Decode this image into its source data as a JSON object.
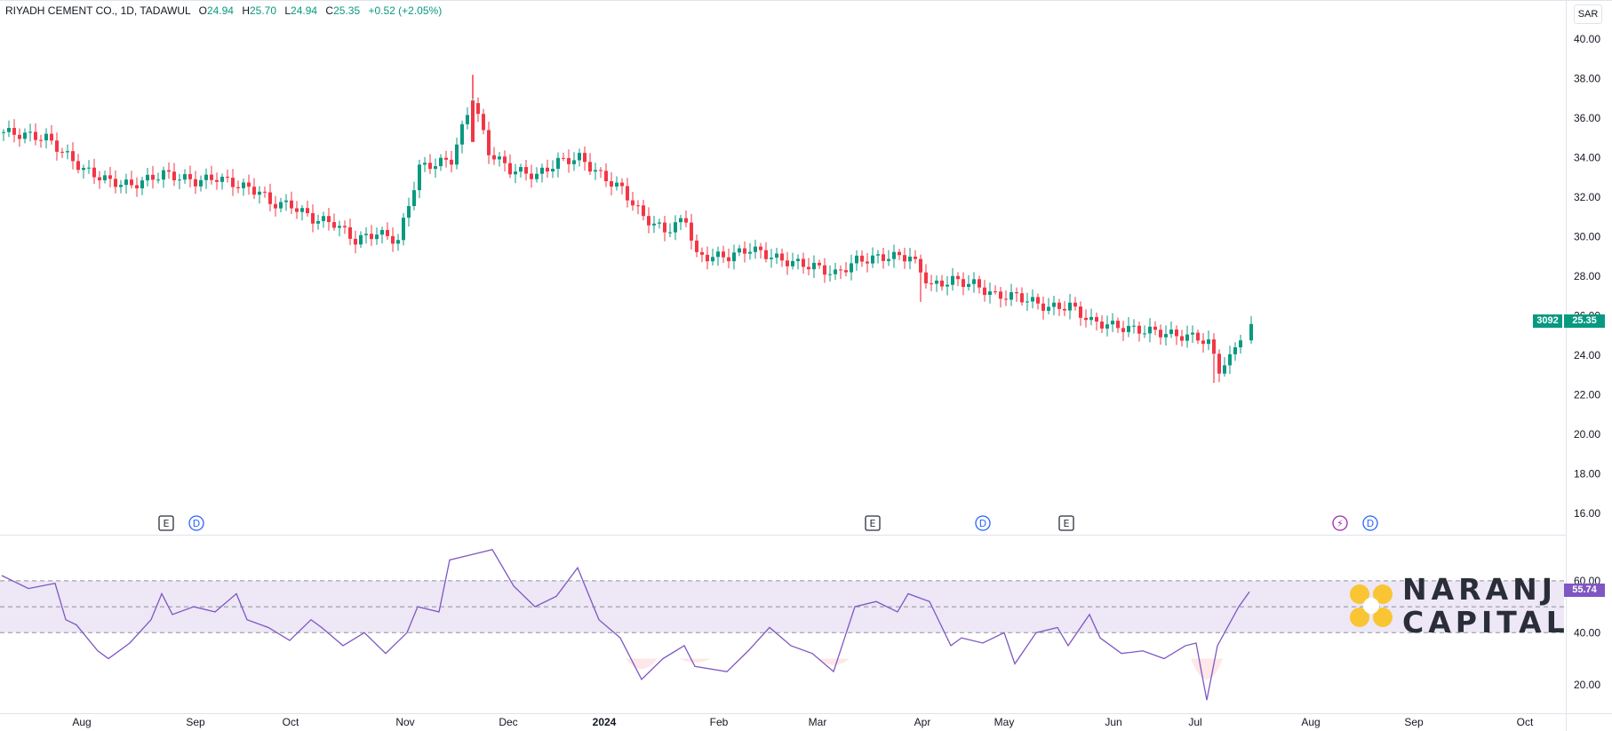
{
  "legend": {
    "symbol": "RIYADH CEMENT CO., 1D, TADAWUL",
    "open_label": "O",
    "open": "24.94",
    "high_label": "H",
    "high": "25.70",
    "low_label": "L",
    "low": "24.94",
    "close_label": "C",
    "close": "25.35",
    "change": "+0.52 (+2.05%)"
  },
  "currency": "SAR",
  "price_tags": {
    "volume": "3092",
    "last_price": "25.35",
    "rsi_value": "55.74"
  },
  "colors": {
    "up": "#089981",
    "down": "#f23645",
    "rsi": "#7e57c2",
    "rsi_band": "#ede7f6",
    "tag_green": "#089981",
    "tag_purple": "#7e57c2",
    "logo_yellow": "#f9c533"
  },
  "logo": {
    "line1": "NARANJ",
    "line2": "CAPITAL"
  },
  "chart_data": [
    {
      "type": "candlestick",
      "title": "RIYADH CEMENT CO., 1D, TADAWUL",
      "ylim": [
        15,
        41
      ],
      "y_ticks": [
        "16.00",
        "18.00",
        "20.00",
        "22.00",
        "24.00",
        "26.00",
        "28.00",
        "30.00",
        "32.00",
        "34.00",
        "36.00",
        "38.00",
        "40.00"
      ],
      "x_ticks": [
        "Aug",
        "Sep",
        "Oct",
        "Nov",
        "Dec",
        "2024",
        "Feb",
        "Mar",
        "Apr",
        "May",
        "Jun",
        "Jul",
        "Aug",
        "Sep",
        "Oct"
      ],
      "close_path": [
        [
          0,
          35.3
        ],
        [
          8,
          35.0
        ],
        [
          15,
          33.4
        ],
        [
          20,
          32.8
        ],
        [
          24,
          32.6
        ],
        [
          30,
          33.2
        ],
        [
          36,
          32.8
        ],
        [
          40,
          33.0
        ],
        [
          44,
          32.6
        ],
        [
          48,
          32.3
        ],
        [
          50,
          31.7
        ],
        [
          54,
          31.6
        ],
        [
          58,
          30.9
        ],
        [
          62,
          30.7
        ],
        [
          66,
          29.8
        ],
        [
          70,
          30.2
        ],
        [
          74,
          29.8
        ],
        [
          78,
          33.5
        ],
        [
          84,
          33.9
        ],
        [
          88,
          37.0
        ],
        [
          91,
          34.3
        ],
        [
          95,
          33.4
        ],
        [
          100,
          33.1
        ],
        [
          104,
          33.8
        ],
        [
          108,
          34.0
        ],
        [
          112,
          33.1
        ],
        [
          116,
          32.4
        ],
        [
          120,
          31.0
        ],
        [
          124,
          30.3
        ],
        [
          128,
          30.9
        ],
        [
          130,
          29.0
        ],
        [
          136,
          29.0
        ],
        [
          140,
          29.4
        ],
        [
          146,
          28.8
        ],
        [
          152,
          28.5
        ],
        [
          156,
          28.1
        ],
        [
          160,
          28.8
        ],
        [
          166,
          29.0
        ],
        [
          170,
          29.0
        ],
        [
          174,
          27.5
        ],
        [
          178,
          27.8
        ],
        [
          182,
          27.6
        ],
        [
          186,
          27.0
        ],
        [
          190,
          27.0
        ],
        [
          196,
          26.4
        ],
        [
          200,
          26.5
        ],
        [
          204,
          25.7
        ],
        [
          208,
          25.5
        ],
        [
          212,
          25.3
        ],
        [
          216,
          25.2
        ],
        [
          220,
          25.0
        ],
        [
          224,
          24.9
        ],
        [
          226,
          24.6
        ],
        [
          228,
          23.3
        ],
        [
          230,
          23.8
        ],
        [
          232,
          25.0
        ],
        [
          234,
          25.35
        ]
      ],
      "down_spikes": [
        [
          172,
          26.7
        ],
        [
          227,
          22.6
        ]
      ],
      "up_spikes": [
        [
          88,
          38.2
        ]
      ],
      "markers": [
        {
          "label": "E",
          "x": 30
        },
        {
          "label": "D",
          "x": 35
        },
        {
          "label": "E",
          "x": 157
        },
        {
          "label": "D",
          "x": 177
        },
        {
          "label": "E",
          "x": 192
        },
        {
          "label": "⚡",
          "x": 241
        },
        {
          "label": "D",
          "x": 247
        }
      ]
    },
    {
      "type": "line",
      "title": "",
      "ylim": [
        10,
        75
      ],
      "y_ticks": [
        "20.00",
        "40.00",
        "60.00"
      ],
      "bands": [
        40,
        50,
        60
      ],
      "values": [
        [
          0,
          62
        ],
        [
          5,
          57
        ],
        [
          10,
          59
        ],
        [
          12,
          45
        ],
        [
          14,
          43
        ],
        [
          18,
          33
        ],
        [
          20,
          30
        ],
        [
          24,
          36
        ],
        [
          28,
          45
        ],
        [
          30,
          55
        ],
        [
          32,
          47
        ],
        [
          36,
          50
        ],
        [
          40,
          48
        ],
        [
          44,
          55
        ],
        [
          46,
          45
        ],
        [
          50,
          42
        ],
        [
          54,
          37
        ],
        [
          58,
          45
        ],
        [
          60,
          42
        ],
        [
          64,
          35
        ],
        [
          68,
          40
        ],
        [
          72,
          32
        ],
        [
          76,
          40
        ],
        [
          78,
          50
        ],
        [
          82,
          48
        ],
        [
          84,
          68
        ],
        [
          88,
          70
        ],
        [
          92,
          72
        ],
        [
          96,
          58
        ],
        [
          100,
          50
        ],
        [
          104,
          54
        ],
        [
          108,
          65
        ],
        [
          112,
          45
        ],
        [
          116,
          38
        ],
        [
          120,
          22
        ],
        [
          124,
          30
        ],
        [
          128,
          35
        ],
        [
          130,
          27
        ],
        [
          136,
          25
        ],
        [
          140,
          33
        ],
        [
          144,
          42
        ],
        [
          148,
          35
        ],
        [
          152,
          32
        ],
        [
          156,
          25
        ],
        [
          160,
          50
        ],
        [
          164,
          52
        ],
        [
          168,
          48
        ],
        [
          170,
          55
        ],
        [
          174,
          52
        ],
        [
          178,
          35
        ],
        [
          180,
          38
        ],
        [
          184,
          36
        ],
        [
          188,
          40
        ],
        [
          190,
          28
        ],
        [
          194,
          40
        ],
        [
          198,
          42
        ],
        [
          200,
          35
        ],
        [
          204,
          47
        ],
        [
          206,
          38
        ],
        [
          210,
          32
        ],
        [
          214,
          33
        ],
        [
          218,
          30
        ],
        [
          222,
          35
        ],
        [
          224,
          36
        ],
        [
          226,
          14
        ],
        [
          228,
          35
        ],
        [
          232,
          50
        ],
        [
          234,
          55.74
        ]
      ],
      "oversold_dips": [
        [
          120,
          22
        ],
        [
          130,
          27
        ],
        [
          156,
          25
        ],
        [
          226,
          14
        ]
      ]
    }
  ]
}
